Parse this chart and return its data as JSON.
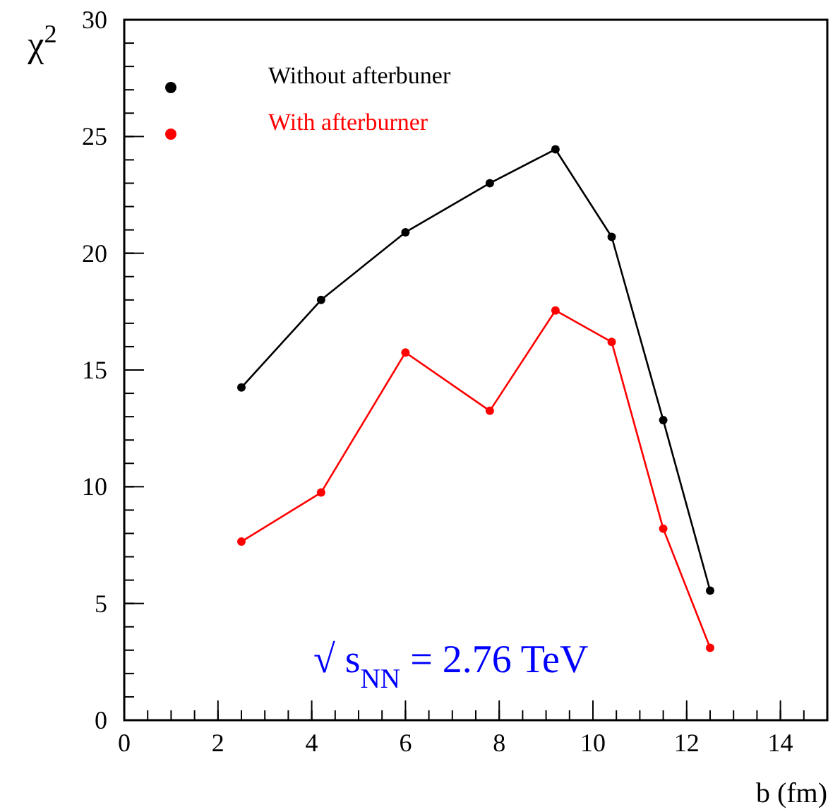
{
  "chart_data": {
    "type": "line",
    "xlabel": "b (fm)",
    "ylabel": "χ$^{2}$",
    "x": [
      2.5,
      4.2,
      6.0,
      7.8,
      9.2,
      10.4,
      11.5,
      12.5
    ],
    "series": [
      {
        "name": "Without afterbuner",
        "color": "#000000",
        "values": [
          14.25,
          18.0,
          20.9,
          23.0,
          24.45,
          20.7,
          12.85,
          5.55
        ]
      },
      {
        "name": "With afterburner",
        "color": "#ff0000",
        "values": [
          7.65,
          9.75,
          15.75,
          13.25,
          17.55,
          16.2,
          8.2,
          3.1
        ]
      }
    ],
    "xlim": [
      0,
      15
    ],
    "xticks": [
      0,
      2,
      4,
      6,
      8,
      10,
      12,
      14
    ],
    "ylim": [
      0,
      30
    ],
    "yticks": [
      0,
      5,
      10,
      15,
      20,
      25,
      30
    ],
    "annotations": [
      "√ s$_{NN}$ = 2.76 TeV"
    ],
    "legend": "top left",
    "marker": "circle",
    "line_style": "solid",
    "grid": false
  }
}
